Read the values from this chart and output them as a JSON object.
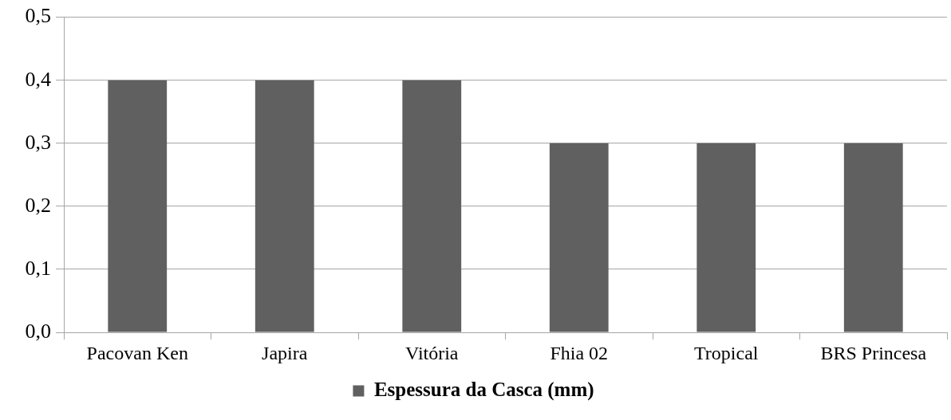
{
  "chart_data": {
    "type": "bar",
    "categories": [
      "Pacovan Ken",
      "Japira",
      "Vitória",
      "Fhia 02",
      "Tropical",
      "BRS Princesa"
    ],
    "series": [
      {
        "name": "Espessura da Casca (mm)",
        "color": "#606060",
        "values": [
          0.4,
          0.4,
          0.4,
          0.3,
          0.3,
          0.3
        ]
      }
    ],
    "ylim": [
      0,
      0.5
    ],
    "yticks": [
      {
        "value": 0,
        "label": "0,0"
      },
      {
        "value": 0.1,
        "label": "0,1"
      },
      {
        "value": 0.2,
        "label": "0,2"
      },
      {
        "value": 0.3,
        "label": "0,3"
      },
      {
        "value": 0.4,
        "label": "0,4"
      },
      {
        "value": 0.5,
        "label": "0,5"
      }
    ],
    "grid": "y",
    "legend": "bottom"
  }
}
